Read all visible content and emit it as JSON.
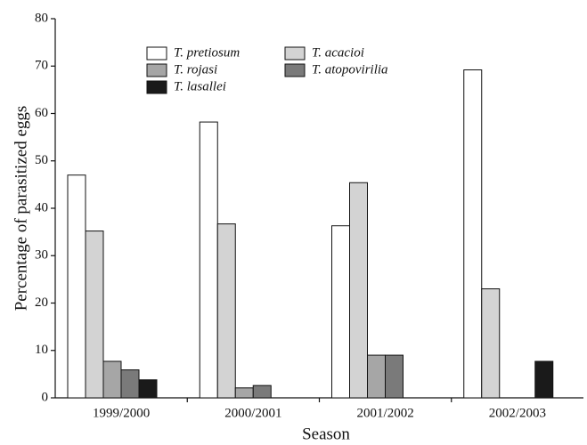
{
  "chart_data": {
    "type": "bar",
    "x_label": "Season",
    "y_label": "Percentage of parasitized eggs",
    "categories": [
      "1999/2000",
      "2000/2001",
      "2001/2002",
      "2002/2003"
    ],
    "series": [
      {
        "name": "T. pretiosum",
        "color": "#ffffff",
        "values": [
          47,
          58.2,
          36.3,
          69.2
        ]
      },
      {
        "name": "T. acacioi",
        "color": "#d3d3d3",
        "values": [
          35.2,
          36.7,
          45.4,
          23
        ]
      },
      {
        "name": "T. rojasi",
        "color": "#a6a6a6",
        "values": [
          7.7,
          2.1,
          9,
          0
        ]
      },
      {
        "name": "T. atopovirilia",
        "color": "#7a7a7a",
        "values": [
          5.9,
          2.6,
          9,
          0
        ]
      },
      {
        "name": "T. lasallei",
        "color": "#1a1a1a",
        "values": [
          3.8,
          0,
          0,
          7.7
        ]
      }
    ],
    "ylim": [
      0,
      80
    ],
    "yticks": [
      0,
      10,
      20,
      30,
      40,
      50,
      60,
      70,
      80
    ]
  }
}
